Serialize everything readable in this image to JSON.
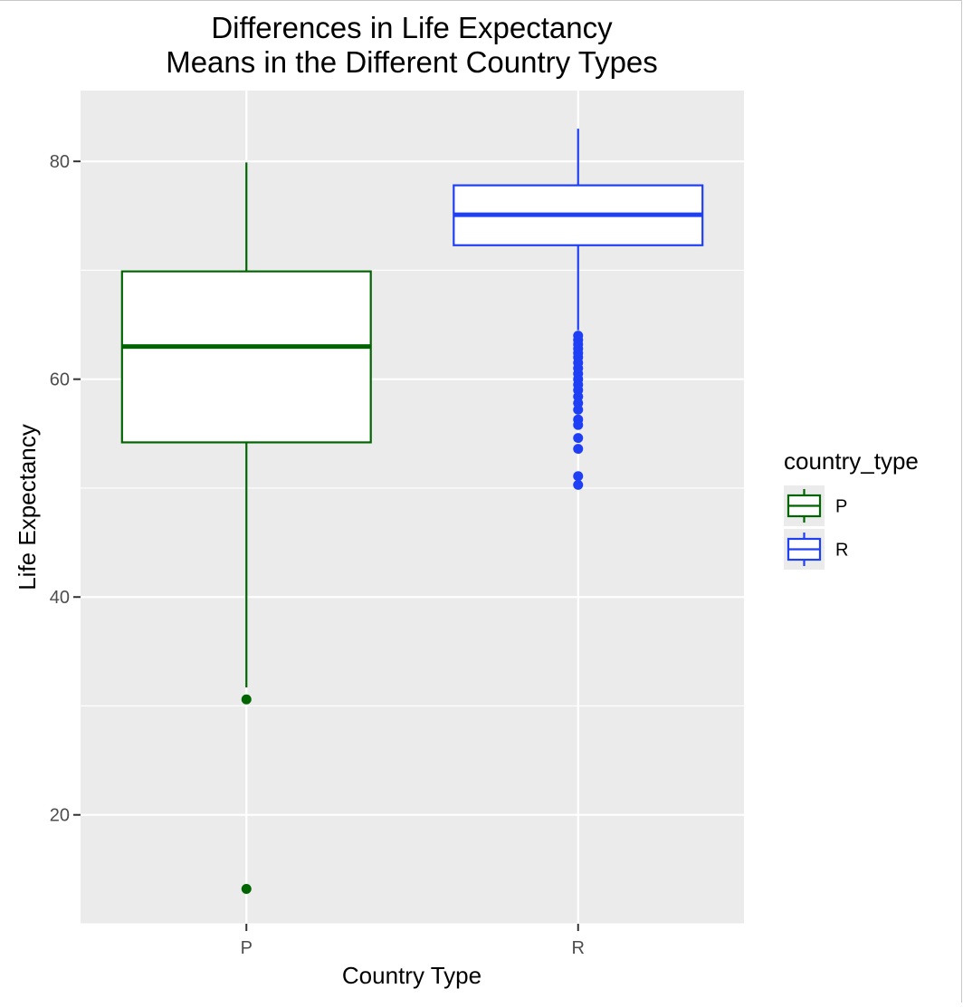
{
  "chart_data": {
    "type": "boxplot",
    "title": "Differences in Life Expectancy",
    "subtitle": "Means in the Different Country Types",
    "xlabel": "Country Type",
    "ylabel": "Life Expectancy",
    "ylim": [
      10,
      86.5
    ],
    "yticks": [
      20,
      40,
      60,
      80
    ],
    "grid": true,
    "legend": {
      "title": "country_type",
      "position": "right",
      "entries": [
        "P",
        "R"
      ]
    },
    "categories": [
      "P",
      "R"
    ],
    "series": [
      {
        "name": "P",
        "color": "#006400",
        "whisker_low": 31.7,
        "q1": 54.2,
        "median": 63.0,
        "q3": 69.9,
        "whisker_high": 79.9,
        "outliers": [
          30.6,
          13.2
        ]
      },
      {
        "name": "R",
        "color": "#1f3ff5",
        "whisker_low": 64.5,
        "q1": 72.3,
        "median": 75.1,
        "q3": 77.8,
        "whisker_high": 83.0,
        "outliers": [
          64.0,
          63.6,
          63.2,
          62.8,
          62.4,
          62.0,
          61.5,
          61.0,
          60.5,
          60.0,
          59.5,
          59.0,
          58.4,
          57.8,
          57.2,
          56.3,
          55.8,
          54.6,
          53.6,
          51.1,
          50.3
        ]
      }
    ]
  }
}
